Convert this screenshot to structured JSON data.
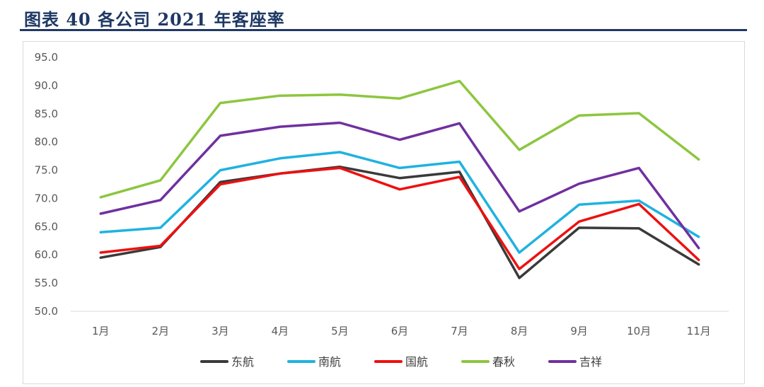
{
  "header": {
    "title": "图表 40   各公司 2021 年客座率"
  },
  "chart_data": {
    "type": "line",
    "title": "",
    "xlabel": "",
    "ylabel": "",
    "categories": [
      "1月",
      "2月",
      "3月",
      "4月",
      "5月",
      "6月",
      "7月",
      "8月",
      "9月",
      "10月",
      "11月"
    ],
    "ylim": [
      50.0,
      95.0
    ],
    "yticks": [
      "95.0",
      "90.0",
      "85.0",
      "80.0",
      "75.0",
      "70.0",
      "65.0",
      "60.0",
      "55.0",
      "50.0"
    ],
    "grid": false,
    "legend_position": "bottom",
    "series": [
      {
        "name": "东航",
        "color": "#3a3a3a",
        "values": [
          59.5,
          61.4,
          72.9,
          74.4,
          75.6,
          73.6,
          74.7,
          55.9,
          64.8,
          64.7,
          58.3
        ]
      },
      {
        "name": "南航",
        "color": "#1fb2e0",
        "values": [
          64.0,
          64.8,
          75.0,
          77.1,
          78.2,
          75.4,
          76.5,
          60.4,
          68.9,
          69.6,
          63.2
        ]
      },
      {
        "name": "国航",
        "color": "#ee1010",
        "values": [
          60.4,
          61.6,
          72.5,
          74.4,
          75.4,
          71.6,
          73.8,
          57.5,
          65.9,
          69.0,
          59.1
        ]
      },
      {
        "name": "春秋",
        "color": "#8dc63f",
        "values": [
          70.2,
          73.2,
          86.9,
          88.2,
          88.4,
          87.7,
          90.8,
          78.6,
          84.7,
          85.1,
          76.9
        ]
      },
      {
        "name": "吉祥",
        "color": "#7030a0",
        "values": [
          67.3,
          69.7,
          81.1,
          82.7,
          83.4,
          80.4,
          83.3,
          67.7,
          72.6,
          75.4,
          61.2
        ]
      }
    ]
  }
}
